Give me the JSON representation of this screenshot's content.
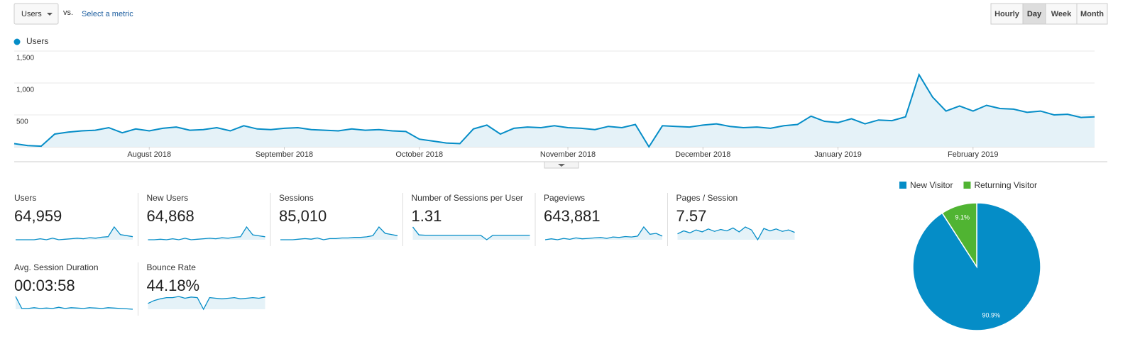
{
  "controls": {
    "metric": "Users",
    "vs": "vs.",
    "select": "Select a metric",
    "buttons": [
      "Hourly",
      "Day",
      "Week",
      "Month"
    ],
    "active": "Day"
  },
  "chart_data": [
    {
      "type": "line",
      "series": [
        {
          "name": "Users",
          "color": "#058dc7",
          "values": [
            50,
            20,
            10,
            200,
            230,
            250,
            260,
            300,
            220,
            280,
            250,
            290,
            310,
            260,
            270,
            300,
            250,
            330,
            280,
            270,
            290,
            300,
            270,
            260,
            250,
            280,
            260,
            270,
            250,
            240,
            120,
            90,
            60,
            50,
            280,
            340,
            200,
            290,
            310,
            300,
            330,
            300,
            290,
            270,
            320,
            300,
            350,
            0,
            330,
            320,
            310,
            340,
            360,
            320,
            300,
            310,
            290,
            330,
            350,
            480,
            400,
            380,
            440,
            360,
            420,
            410,
            470,
            1130,
            780,
            560,
            640,
            560,
            650,
            600,
            590,
            540,
            560,
            500,
            510,
            460,
            470
          ]
        }
      ],
      "categories": [
        null,
        null,
        null,
        null,
        null,
        null,
        null,
        null,
        null,
        null,
        "August 2018",
        null,
        null,
        null,
        null,
        null,
        null,
        null,
        null,
        null,
        "September 2018",
        null,
        null,
        null,
        null,
        null,
        null,
        null,
        null,
        null,
        "October 2018",
        null,
        null,
        null,
        null,
        null,
        null,
        null,
        null,
        null,
        null,
        "November 2018",
        null,
        null,
        null,
        null,
        null,
        null,
        null,
        null,
        null,
        "December 2018",
        null,
        null,
        null,
        null,
        null,
        null,
        null,
        null,
        null,
        "January 2019",
        null,
        null,
        null,
        null,
        null,
        null,
        null,
        null,
        null,
        "February 2019",
        null,
        null,
        null,
        null,
        null,
        null,
        null,
        null,
        null
      ],
      "ylim": [
        0,
        1500
      ],
      "yticks": [
        500,
        {
          "value": 1000,
          "label": "1,000"
        },
        {
          "value": 1500,
          "label": "1,500"
        }
      ],
      "grid": true,
      "fill": "#e5f2f8"
    },
    {
      "type": "pie",
      "categories": [
        "New Visitor",
        "Returning Visitor"
      ],
      "values": [
        90.9,
        9.1
      ],
      "value_labels": [
        "90.9%",
        "9.1%"
      ],
      "colors": [
        "#058dc7",
        "#50b432"
      ]
    }
  ],
  "metrics": [
    {
      "label": "Users",
      "value": "64,959",
      "spark": [
        3,
        3,
        3,
        3,
        3.2,
        3,
        3.3,
        3,
        3.1,
        3.2,
        3.3,
        3.2,
        3.4,
        3.3,
        3.5,
        3.6,
        5.5,
        4,
        3.8,
        3.6
      ]
    },
    {
      "label": "New Users",
      "value": "64,868",
      "spark": [
        3,
        3,
        3.1,
        3,
        3.2,
        3,
        3.3,
        3,
        3.1,
        3.2,
        3.3,
        3.2,
        3.4,
        3.3,
        3.5,
        3.6,
        5.6,
        4,
        3.8,
        3.6
      ]
    },
    {
      "label": "Sessions",
      "value": "85,010",
      "spark": [
        3,
        3,
        3,
        3.1,
        3.2,
        3.1,
        3.3,
        3,
        3.2,
        3.2,
        3.3,
        3.3,
        3.4,
        3.4,
        3.5,
        3.7,
        5.2,
        4.1,
        3.9,
        3.7
      ]
    },
    {
      "label": "Number of Sessions per User",
      "value": "1.31",
      "spark": [
        6,
        3.2,
        3.1,
        3.1,
        3.1,
        3.1,
        3.1,
        3.1,
        3.1,
        3.1,
        3.1,
        3.1,
        1.5,
        3.1,
        3.1,
        3.1,
        3.1,
        3.1,
        3.1,
        3.1
      ]
    },
    {
      "label": "Pageviews",
      "value": "643,881",
      "spark": [
        3,
        3.2,
        3,
        3.3,
        3.1,
        3.4,
        3.2,
        3.3,
        3.4,
        3.5,
        3.3,
        3.6,
        3.5,
        3.7,
        3.6,
        3.8,
        5.8,
        4.2,
        4.4,
        3.8
      ]
    },
    {
      "label": "Pages / Session",
      "value": "7.57",
      "spark": [
        4,
        4.6,
        4.2,
        4.8,
        4.4,
        5,
        4.5,
        4.9,
        4.6,
        5.2,
        4.4,
        5.4,
        4.8,
        2.8,
        5.1,
        4.6,
        5,
        4.5,
        4.8,
        4.3
      ]
    },
    {
      "label": "Avg. Session Duration",
      "value": "00:03:58",
      "spark": [
        6,
        3,
        3,
        3.2,
        3,
        3.1,
        3,
        3.3,
        3,
        3.2,
        3.1,
        3,
        3.2,
        3.1,
        3,
        3.2,
        3.1,
        3,
        2.9,
        2.8
      ]
    },
    {
      "label": "Bounce Rate",
      "value": "44.18%",
      "spark": [
        3,
        3.5,
        3.8,
        4,
        4,
        4.2,
        3.9,
        4.1,
        4,
        2,
        4,
        3.9,
        3.8,
        3.9,
        4,
        3.8,
        3.9,
        4,
        3.9,
        4.1
      ]
    }
  ]
}
